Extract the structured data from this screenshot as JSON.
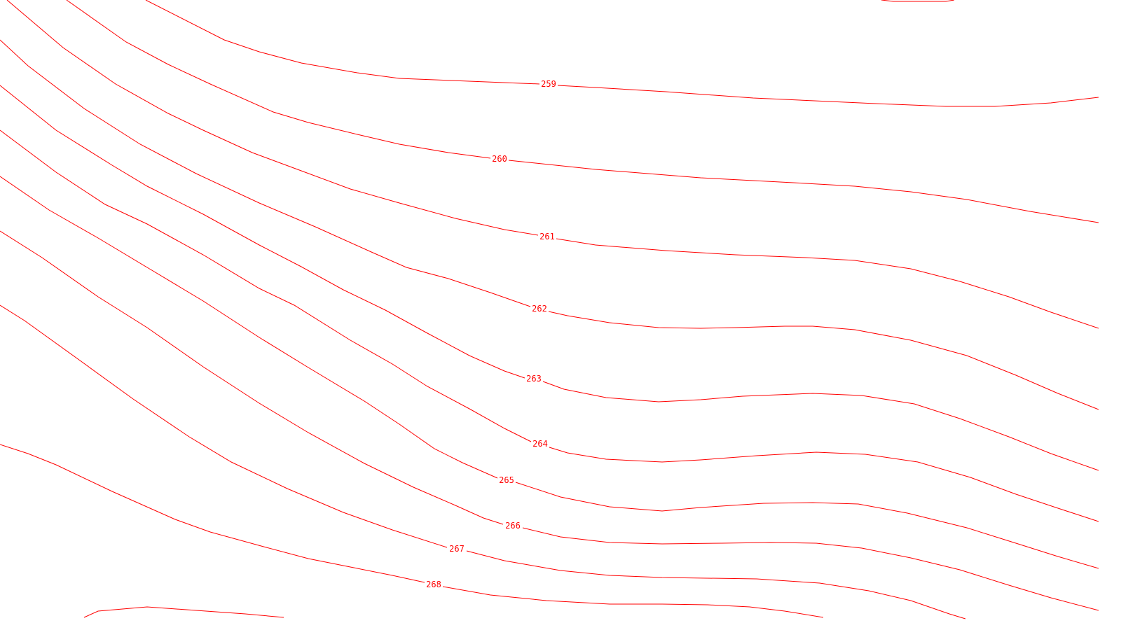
{
  "map": {
    "type": "contour",
    "line_color": "#ff0000",
    "background": "#ffffff",
    "contours": [
      {
        "id": "c259",
        "label": "259"
      },
      {
        "id": "c260",
        "label": "260"
      },
      {
        "id": "c261",
        "label": "261"
      },
      {
        "id": "c262",
        "label": "262"
      },
      {
        "id": "c263",
        "label": "263"
      },
      {
        "id": "c264",
        "label": "264"
      },
      {
        "id": "c265",
        "label": "265"
      },
      {
        "id": "c266",
        "label": "266"
      },
      {
        "id": "c267",
        "label": "267"
      },
      {
        "id": "c268",
        "label": "268"
      }
    ]
  }
}
